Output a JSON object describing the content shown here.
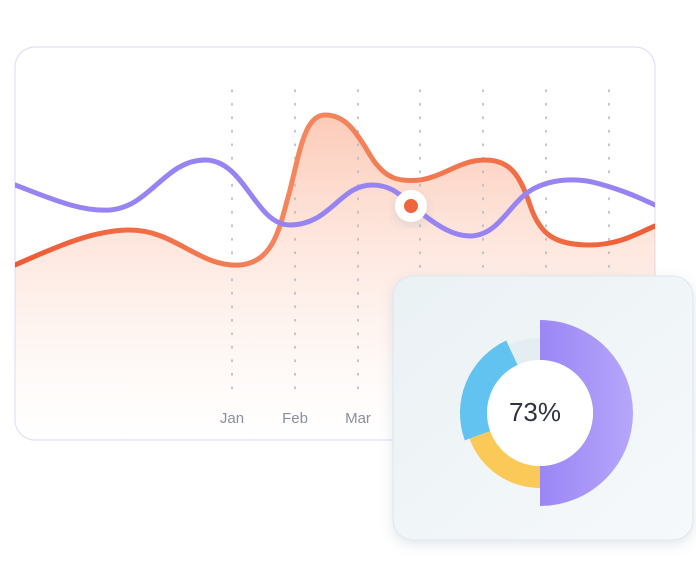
{
  "line_card": {
    "months": [
      "Jan",
      "Feb",
      "Mar"
    ]
  },
  "donut_card": {
    "label": "73%"
  }
}
